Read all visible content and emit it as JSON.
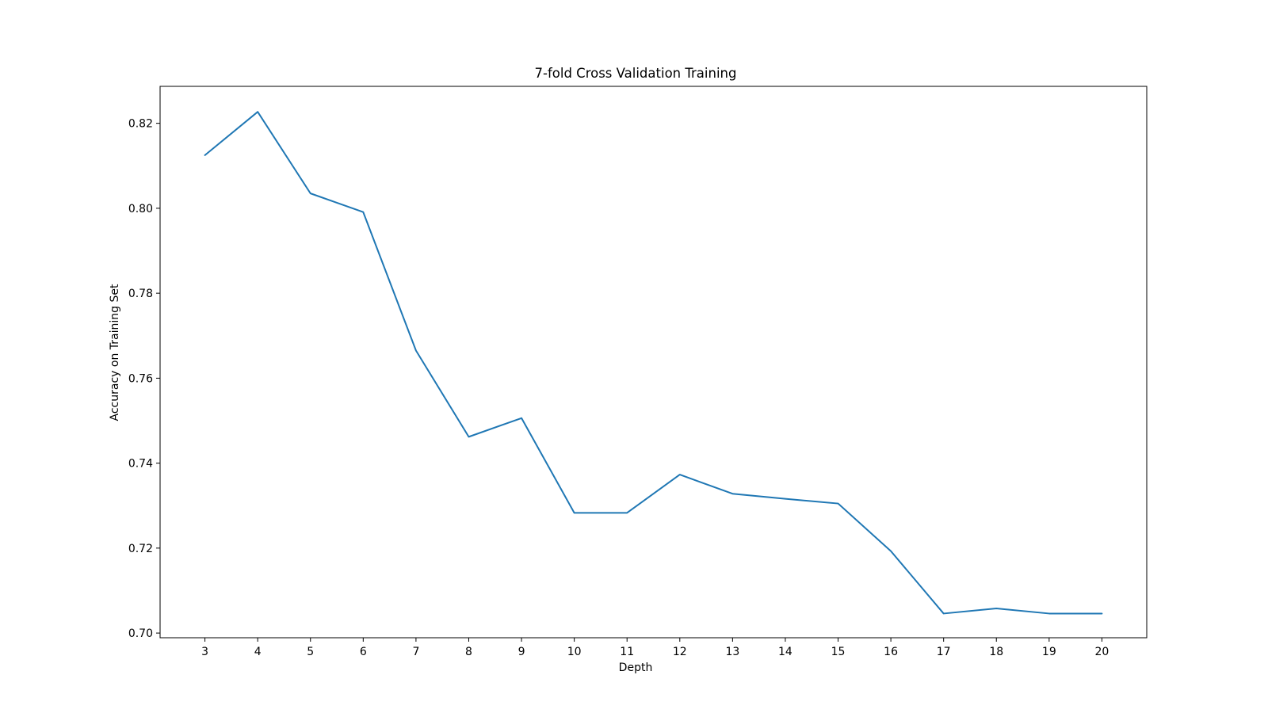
{
  "chart_data": {
    "type": "line",
    "title": "7-fold Cross Validation Training",
    "xlabel": "Depth",
    "ylabel": "Accuracy on Training Set",
    "x": [
      3,
      4,
      5,
      6,
      7,
      8,
      9,
      10,
      11,
      12,
      13,
      14,
      15,
      16,
      17,
      18,
      19,
      20
    ],
    "series": [
      {
        "values": [
          0.8125,
          0.8227,
          0.8035,
          0.7991,
          0.7665,
          0.7462,
          0.7506,
          0.7283,
          0.7283,
          0.7373,
          0.7328,
          0.7316,
          0.7305,
          0.7193,
          0.7046,
          0.7058,
          0.7046,
          0.7046
        ],
        "color": "#1f77b4"
      }
    ],
    "x_ticks": [
      "3",
      "4",
      "5",
      "6",
      "7",
      "8",
      "9",
      "10",
      "11",
      "12",
      "13",
      "14",
      "15",
      "16",
      "17",
      "18",
      "19",
      "20"
    ],
    "y_ticks": [
      "0.70",
      "0.72",
      "0.74",
      "0.76",
      "0.78",
      "0.80",
      "0.82"
    ],
    "y_tick_values": [
      0.7,
      0.72,
      0.74,
      0.76,
      0.78,
      0.8,
      0.82
    ],
    "xlim": [
      2.15,
      20.85
    ],
    "ylim": [
      0.6989,
      0.8287
    ],
    "grid": false,
    "legend": false
  }
}
